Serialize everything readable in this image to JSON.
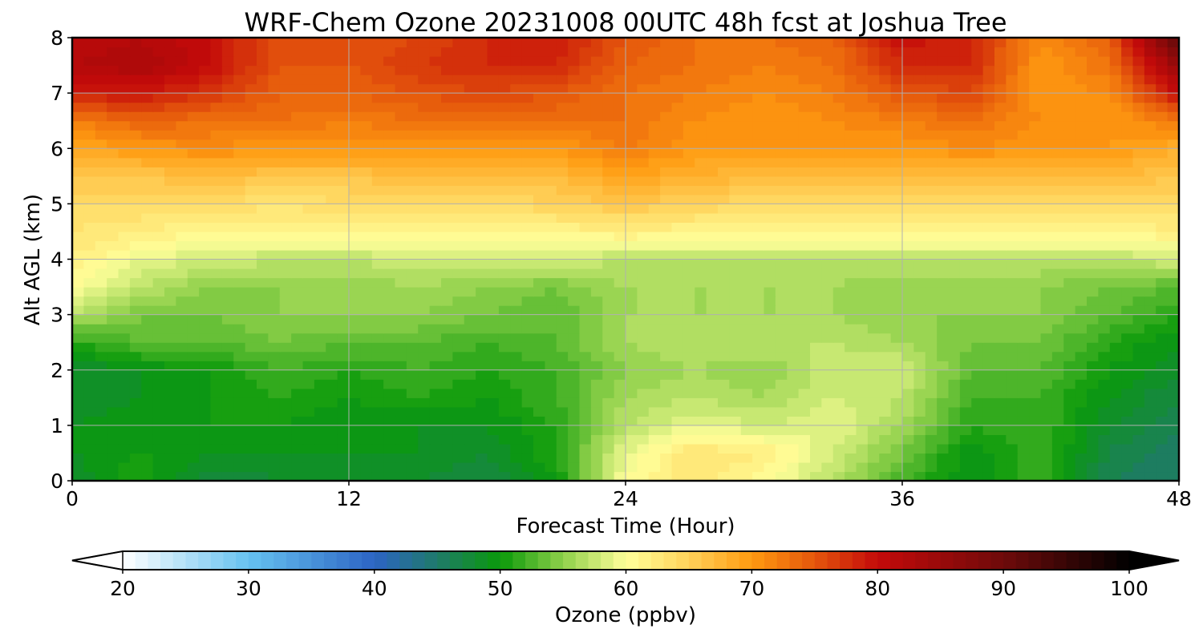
{
  "chart_data": {
    "type": "heatmap",
    "title": "WRF-Chem Ozone  20231008 00UTC 48h fcst at Joshua Tree",
    "xlabel": "Forecast Time (Hour)",
    "ylabel": "Alt AGL (km)",
    "xlim": [
      0,
      48
    ],
    "ylim": [
      0,
      8
    ],
    "x_ticks": [
      0,
      12,
      24,
      36,
      48
    ],
    "y_ticks": [
      0,
      1,
      2,
      3,
      4,
      5,
      6,
      7,
      8
    ],
    "grid": true,
    "x": [
      0,
      3,
      6,
      9,
      12,
      15,
      18,
      21,
      24,
      27,
      30,
      33,
      36,
      39,
      42,
      45,
      48
    ],
    "y": [
      0,
      0.5,
      1,
      1.5,
      2,
      2.5,
      3,
      3.5,
      4,
      4.5,
      5,
      5.5,
      6,
      6.5,
      7,
      7.5,
      8
    ],
    "z_units": "ppbv",
    "z": [
      [
        48,
        51,
        47,
        48,
        48,
        48,
        47,
        50,
        60,
        63,
        60,
        57,
        52,
        49,
        52,
        46,
        45
      ],
      [
        49,
        50,
        49,
        49,
        49,
        49,
        48,
        51,
        59,
        63,
        62,
        58,
        54,
        49,
        52,
        47,
        45
      ],
      [
        49,
        50,
        50,
        50,
        49,
        49,
        49,
        51,
        57,
        59,
        58,
        59,
        56,
        51,
        52,
        48,
        46
      ],
      [
        48,
        49,
        50,
        51,
        50,
        51,
        50,
        52,
        56,
        57,
        56,
        58,
        57,
        52,
        52,
        49,
        47
      ],
      [
        48,
        49,
        50,
        52,
        51,
        52,
        51,
        52,
        55,
        56,
        55,
        58,
        58,
        53,
        53,
        50,
        48
      ],
      [
        51,
        53,
        53,
        54,
        53,
        53,
        52,
        53,
        56,
        57,
        57,
        57,
        56,
        54,
        54,
        51,
        49
      ],
      [
        57,
        54,
        54,
        55,
        55,
        55,
        54,
        53,
        56,
        56,
        56,
        56,
        55,
        55,
        55,
        53,
        51
      ],
      [
        60,
        57,
        55,
        55,
        55,
        56,
        55,
        54,
        56,
        56,
        56,
        56,
        55,
        55,
        55,
        54,
        53
      ],
      [
        62,
        59,
        58,
        57,
        57,
        58,
        58,
        58,
        57,
        57,
        57,
        57,
        57,
        57,
        57,
        57,
        58
      ],
      [
        63,
        62,
        61,
        61,
        61,
        61,
        61,
        61,
        62,
        61,
        61,
        61,
        61,
        61,
        61,
        61,
        62
      ],
      [
        64,
        64,
        64,
        63,
        64,
        64,
        64,
        65,
        66,
        65,
        64,
        64,
        64,
        64,
        64,
        64,
        64
      ],
      [
        66,
        66,
        67,
        66,
        66,
        67,
        67,
        67,
        69,
        68,
        67,
        67,
        67,
        67,
        67,
        67,
        66
      ],
      [
        69,
        70,
        71,
        70,
        70,
        70,
        70,
        70,
        72,
        70,
        70,
        70,
        70,
        71,
        70,
        70,
        68
      ],
      [
        72,
        74,
        73,
        73,
        72,
        73,
        73,
        73,
        73,
        71,
        70,
        71,
        72,
        73,
        71,
        70,
        72
      ],
      [
        79,
        79,
        77,
        74,
        74,
        75,
        76,
        75,
        73,
        72,
        71,
        72,
        75,
        76,
        70,
        71,
        80
      ],
      [
        82,
        83,
        80,
        75,
        75,
        77,
        78,
        78,
        74,
        73,
        72,
        73,
        78,
        78,
        70,
        73,
        85
      ],
      [
        81,
        82,
        80,
        75,
        75,
        76,
        78,
        79,
        75,
        73,
        73,
        74,
        80,
        78,
        71,
        74,
        92
      ]
    ],
    "colorbar": {
      "label": "Ozone  (ppbv)",
      "min": 20,
      "max": 100,
      "step": 1,
      "extend": "both",
      "ticks": [
        20,
        30,
        40,
        50,
        60,
        70,
        80,
        90,
        100
      ],
      "colormap_stops": [
        {
          "value": 20,
          "color": "#ffffff"
        },
        {
          "value": 30,
          "color": "#66c2f0"
        },
        {
          "value": 40,
          "color": "#2c64c4"
        },
        {
          "value": 45,
          "color": "#1f7a6a"
        },
        {
          "value": 50,
          "color": "#0a9a0a"
        },
        {
          "value": 55,
          "color": "#8fd04a"
        },
        {
          "value": 60,
          "color": "#ffff9a"
        },
        {
          "value": 65,
          "color": "#ffd25a"
        },
        {
          "value": 70,
          "color": "#ff9a10"
        },
        {
          "value": 75,
          "color": "#e4560c"
        },
        {
          "value": 80,
          "color": "#c40a0a"
        },
        {
          "value": 90,
          "color": "#6e0a0a"
        },
        {
          "value": 100,
          "color": "#000000"
        }
      ]
    }
  }
}
